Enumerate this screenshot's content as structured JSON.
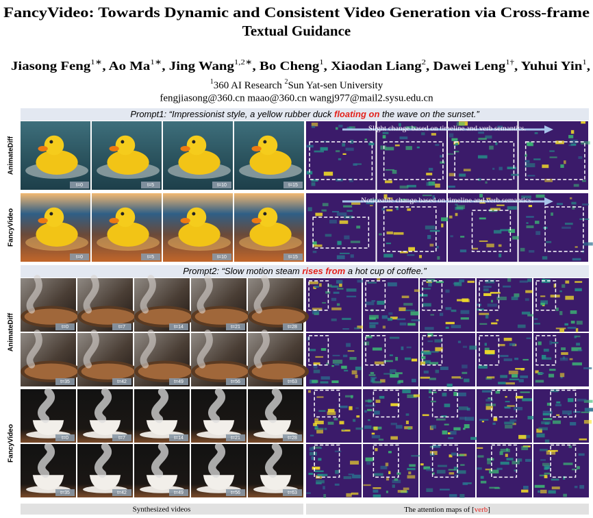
{
  "title": [
    "FancyVideo: Towards Dynamic and Consistent Video Generation via Cross-frame",
    "Textual Guidance"
  ],
  "authors": [
    {
      "name": "Jiasong Feng",
      "sup": "1∗",
      "sep": ", "
    },
    {
      "name": "Ao Ma",
      "sup": "1∗",
      "sep": ", "
    },
    {
      "name": "Jing Wang",
      "sup": "1,2∗",
      "sep": ", "
    },
    {
      "name": "Bo Cheng",
      "sup": "1",
      "sep": ", "
    },
    {
      "name": "Xiaodan Liang",
      "sup": "2",
      "sep": ", "
    },
    {
      "name": "Dawei Leng",
      "sup": "1†",
      "sep": ", "
    },
    {
      "name": "Yuhui Yin",
      "sup": "1",
      "sep": ","
    }
  ],
  "affiliations": [
    {
      "sup": "1",
      "name": "360 AI Research "
    },
    {
      "sup": "2",
      "name": "Sun Yat-sen University"
    }
  ],
  "emails": "fengjiasong@360.cn maao@360.cn wangj977@mail2.sysu.edu.cn",
  "blocks": [
    {
      "prompt": {
        "label": "Prompt1: ",
        "before": "“Impressionist style, a yellow rubber duck ",
        "verb": "floating on",
        "after": " the wave on the sunset.”"
      },
      "rows": [
        {
          "method": "AnimateDiff",
          "frames": [
            [
              "t=0",
              "t=5",
              "t=10",
              "t=15"
            ]
          ],
          "annotation": "Slight change based on timeline and verb semantics."
        },
        {
          "method": "FancyVideo",
          "frames": [
            [
              "t=0",
              "t=5",
              "t=10",
              "t=15"
            ]
          ],
          "annotation": "Noticeable change based on timeline and verb semantics."
        }
      ]
    },
    {
      "prompt": {
        "label": "Prompt2: ",
        "before": "“Slow motion steam ",
        "verb": "rises from",
        "after": " a hot cup of coffee.”"
      },
      "rows": [
        {
          "method": "AnimateDiff",
          "frames": [
            [
              "t=0",
              "t=7",
              "t=14",
              "t=21",
              "t=28"
            ],
            [
              "t=35",
              "t=42",
              "t=49",
              "t=56",
              "t=63"
            ]
          ]
        },
        {
          "method": "FancyVideo",
          "frames": [
            [
              "t=0",
              "t=7",
              "t=14",
              "t=21",
              "t=28"
            ],
            [
              "t=35",
              "t=42",
              "t=49",
              "t=56",
              "t=63"
            ]
          ]
        }
      ]
    }
  ],
  "captions": {
    "left": "Synthesized videos",
    "right": {
      "before": "The attention maps of [",
      "verb": "verb",
      "after": "]"
    }
  }
}
